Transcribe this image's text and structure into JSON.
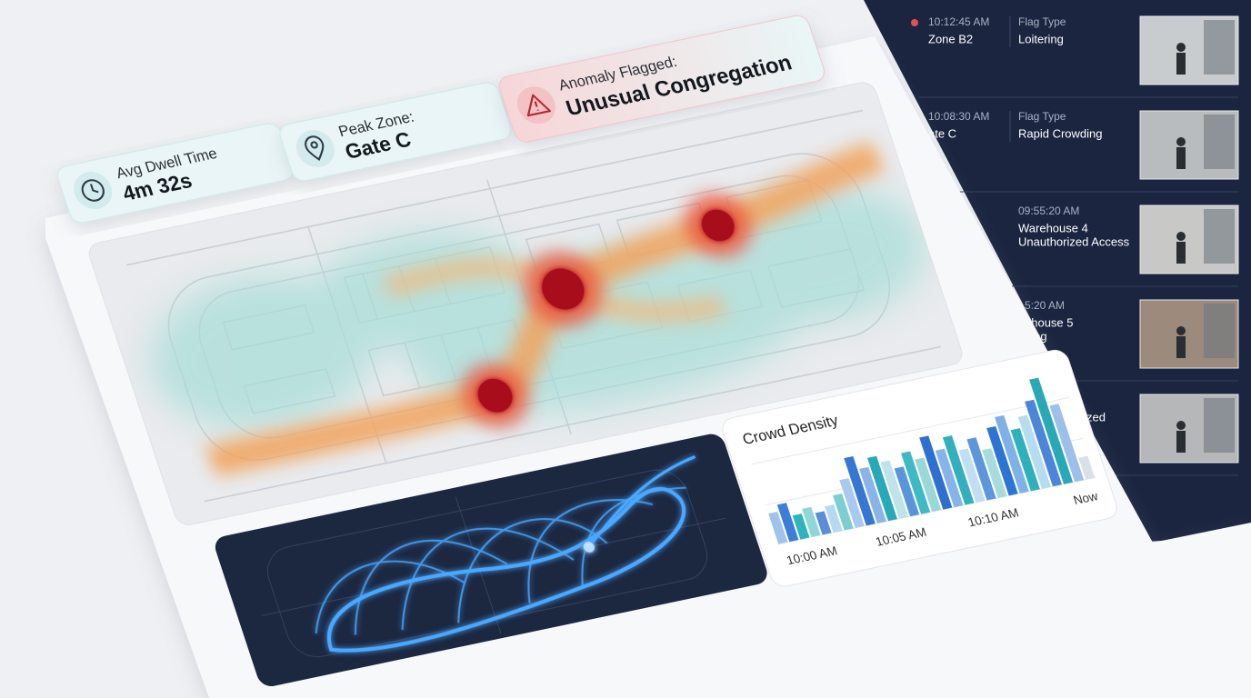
{
  "cards": [
    {
      "label": "Avg Dwell Time",
      "value": "4m 32s"
    },
    {
      "label": "Peak Zone:",
      "value": "Gate C"
    },
    {
      "label": "Anomaly Flagged:",
      "value": "Unusual Congregation"
    }
  ],
  "crowd_density": {
    "type": "bar",
    "title": "Crowd Density",
    "values": [
      28,
      34,
      22,
      26,
      20,
      24,
      32,
      44,
      62,
      50,
      58,
      52,
      44,
      56,
      48,
      66,
      52,
      62,
      48,
      56,
      44,
      62,
      70,
      56,
      66,
      78,
      96,
      70,
      20
    ],
    "colors": [
      "#9fc3ea",
      "#3b7dd8",
      "#2fb3bf",
      "#8fd6d6",
      "#5b8fd8",
      "#b8d8f0",
      "#7ccfd0",
      "#a9c9ee",
      "#3577d2",
      "#8cb3e6",
      "#28a9b8",
      "#bfe3e8",
      "#5a95db",
      "#3fb9c2",
      "#9ad8d8",
      "#2f6fcf",
      "#86b4e8",
      "#33afbd",
      "#c2def2",
      "#5c96dd",
      "#a7dcdc",
      "#2e74d4",
      "#7fb0e6",
      "#2fb1bd",
      "#b5dcef",
      "#4d86d8",
      "#29a8b6",
      "#9cc0ea",
      "#d9e1e8"
    ],
    "x_labels": [
      "10:00 AM",
      "10:05 AM",
      "10:10 AM",
      "Now"
    ]
  },
  "events": [
    {
      "time": "10:12:45 AM",
      "location": "Zone B2",
      "flag_label": "Flag Type",
      "flag": "Loitering"
    },
    {
      "time": "10:08:30 AM",
      "location": "ate C",
      "flag_label": "Flag Type",
      "flag": "Rapid Crowding"
    },
    {
      "lines": [
        "09:55:20 AM",
        "Warehouse 4",
        "Unauthorized Access"
      ]
    },
    {
      "lines": [
        "5:20 AM",
        "ehouse 5",
        "ding"
      ]
    },
    {
      "lines": [
        "zed"
      ]
    }
  ]
}
